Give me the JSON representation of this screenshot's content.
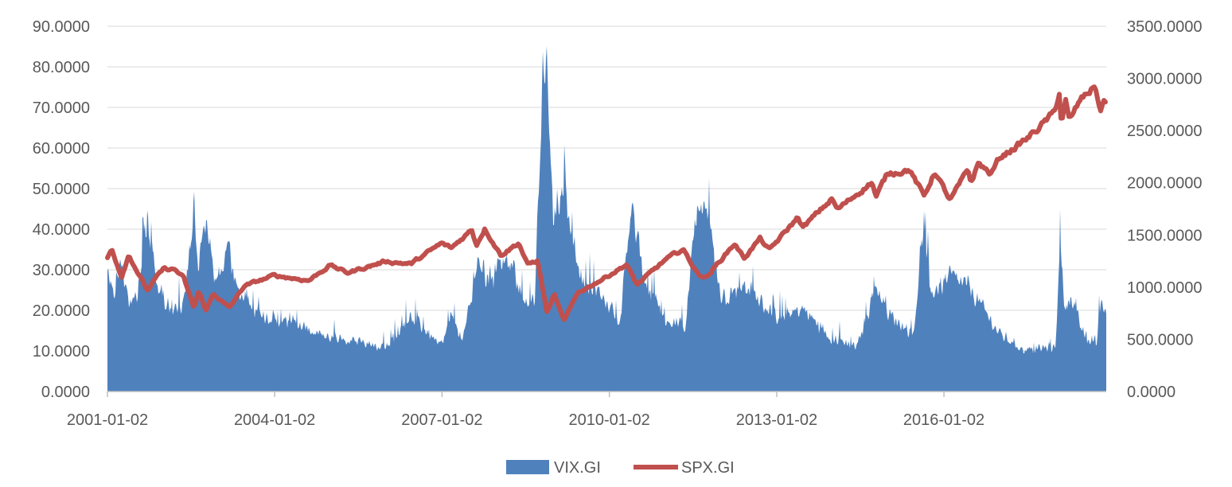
{
  "chart_data": {
    "type": "area",
    "title": "",
    "grid": true,
    "legend_position": "bottom",
    "x_axis": {
      "type": "date",
      "range": [
        "2001-01-02",
        "2018-11-30"
      ],
      "tick_labels": [
        "2001-01-02",
        "2004-01-02",
        "2007-01-02",
        "2010-01-02",
        "2013-01-02",
        "2016-01-02"
      ]
    },
    "y_left": {
      "range": [
        0,
        90
      ],
      "tick_labels": [
        "0.0000",
        "10.0000",
        "20.0000",
        "30.0000",
        "40.0000",
        "50.0000",
        "60.0000",
        "70.0000",
        "80.0000",
        "90.0000"
      ]
    },
    "y_right": {
      "range": [
        0,
        3500
      ],
      "tick_labels": [
        "0.0000",
        "500.0000",
        "1000.0000",
        "1500.0000",
        "2000.0000",
        "2500.0000",
        "3000.0000",
        "3500.0000"
      ]
    },
    "series": [
      {
        "name": "VIX.GI",
        "chart_type": "area",
        "axis": "left",
        "color": "#4f81bd",
        "points": [
          [
            "2001-01-02",
            29
          ],
          [
            "2001-02-15",
            22
          ],
          [
            "2001-04-04",
            32
          ],
          [
            "2001-05-20",
            21
          ],
          [
            "2001-07-15",
            23
          ],
          [
            "2001-09-20",
            43
          ],
          [
            "2001-11-15",
            27
          ],
          [
            "2002-01-15",
            22
          ],
          [
            "2002-03-15",
            19
          ],
          [
            "2002-05-15",
            21
          ],
          [
            "2002-07-24",
            45
          ],
          [
            "2002-08-20",
            32
          ],
          [
            "2002-10-09",
            42
          ],
          [
            "2002-11-30",
            28
          ],
          [
            "2003-01-15",
            30
          ],
          [
            "2003-03-11",
            34
          ],
          [
            "2003-05-15",
            24
          ],
          [
            "2003-08-01",
            21
          ],
          [
            "2003-10-15",
            19
          ],
          [
            "2004-01-02",
            18
          ],
          [
            "2004-06-15",
            16
          ],
          [
            "2004-12-30",
            13
          ],
          [
            "2005-06-15",
            12
          ],
          [
            "2005-12-30",
            11
          ],
          [
            "2006-06-15",
            18
          ],
          [
            "2006-12-30",
            11
          ],
          [
            "2007-02-27",
            19
          ],
          [
            "2007-05-15",
            13
          ],
          [
            "2007-08-16",
            30
          ],
          [
            "2007-11-26",
            28
          ],
          [
            "2008-01-22",
            31
          ],
          [
            "2008-03-17",
            32
          ],
          [
            "2008-06-15",
            22
          ],
          [
            "2008-09-01",
            23
          ],
          [
            "2008-10-24",
            80
          ],
          [
            "2008-11-20",
            80
          ],
          [
            "2008-12-31",
            40
          ],
          [
            "2009-03-09",
            52
          ],
          [
            "2009-06-15",
            28
          ],
          [
            "2009-12-31",
            21
          ],
          [
            "2010-03-15",
            17
          ],
          [
            "2010-05-20",
            45
          ],
          [
            "2010-08-31",
            26
          ],
          [
            "2010-12-31",
            17
          ],
          [
            "2011-05-15",
            16
          ],
          [
            "2011-08-08",
            48
          ],
          [
            "2011-10-03",
            45
          ],
          [
            "2011-12-31",
            23
          ],
          [
            "2012-06-01",
            26
          ],
          [
            "2012-12-31",
            18
          ],
          [
            "2013-06-24",
            20
          ],
          [
            "2013-12-31",
            13
          ],
          [
            "2014-06-15",
            11
          ],
          [
            "2014-10-15",
            26
          ],
          [
            "2014-12-31",
            19
          ],
          [
            "2015-06-15",
            14
          ],
          [
            "2015-08-24",
            40
          ],
          [
            "2015-09-30",
            24
          ],
          [
            "2016-01-20",
            27
          ],
          [
            "2016-02-11",
            28
          ],
          [
            "2016-06-24",
            25
          ],
          [
            "2016-12-31",
            14
          ],
          [
            "2017-06-15",
            10
          ],
          [
            "2017-12-31",
            11
          ],
          [
            "2018-02-05",
            37
          ],
          [
            "2018-02-28",
            20
          ],
          [
            "2018-04-02",
            23
          ],
          [
            "2018-07-15",
            13
          ],
          [
            "2018-09-30",
            12
          ],
          [
            "2018-10-24",
            24
          ],
          [
            "2018-11-30",
            18
          ]
        ]
      },
      {
        "name": "SPX.GI",
        "chart_type": "line",
        "axis": "right",
        "color": "#c0504d",
        "points": [
          [
            "2001-01-02",
            1283
          ],
          [
            "2001-01-31",
            1366
          ],
          [
            "2001-04-04",
            1103
          ],
          [
            "2001-05-21",
            1312
          ],
          [
            "2001-09-21",
            966
          ],
          [
            "2001-10-31",
            1059
          ],
          [
            "2002-01-04",
            1172
          ],
          [
            "2002-03-19",
            1170
          ],
          [
            "2002-05-15",
            1091
          ],
          [
            "2002-07-23",
            797
          ],
          [
            "2002-08-22",
            962
          ],
          [
            "2002-10-09",
            777
          ],
          [
            "2002-11-27",
            938
          ],
          [
            "2003-03-11",
            800
          ],
          [
            "2003-06-17",
            1011
          ],
          [
            "2003-12-31",
            1112
          ],
          [
            "2004-08-12",
            1064
          ],
          [
            "2004-12-31",
            1212
          ],
          [
            "2005-04-20",
            1137
          ],
          [
            "2005-12-30",
            1248
          ],
          [
            "2006-06-13",
            1223
          ],
          [
            "2006-12-29",
            1418
          ],
          [
            "2007-03-05",
            1374
          ],
          [
            "2007-07-16",
            1553
          ],
          [
            "2007-08-15",
            1406
          ],
          [
            "2007-10-09",
            1565
          ],
          [
            "2008-01-22",
            1310
          ],
          [
            "2008-05-19",
            1426
          ],
          [
            "2008-07-15",
            1214
          ],
          [
            "2008-09-19",
            1255
          ],
          [
            "2008-11-20",
            752
          ],
          [
            "2009-01-06",
            935
          ],
          [
            "2009-03-09",
            676
          ],
          [
            "2009-06-12",
            946
          ],
          [
            "2009-12-31",
            1115
          ],
          [
            "2010-04-23",
            1217
          ],
          [
            "2010-07-02",
            1022
          ],
          [
            "2010-12-31",
            1257
          ],
          [
            "2011-04-29",
            1363
          ],
          [
            "2011-08-08",
            1119
          ],
          [
            "2011-10-03",
            1099
          ],
          [
            "2011-12-30",
            1257
          ],
          [
            "2012-04-02",
            1419
          ],
          [
            "2012-06-01",
            1278
          ],
          [
            "2012-09-14",
            1465
          ],
          [
            "2012-11-15",
            1353
          ],
          [
            "2013-05-21",
            1669
          ],
          [
            "2013-06-24",
            1573
          ],
          [
            "2013-12-31",
            1848
          ],
          [
            "2014-02-03",
            1741
          ],
          [
            "2014-09-18",
            2011
          ],
          [
            "2014-10-15",
            1862
          ],
          [
            "2014-12-29",
            2090
          ],
          [
            "2015-05-21",
            2130
          ],
          [
            "2015-08-25",
            1867
          ],
          [
            "2015-11-03",
            2109
          ],
          [
            "2016-02-11",
            1829
          ],
          [
            "2016-06-08",
            2119
          ],
          [
            "2016-06-27",
            2000
          ],
          [
            "2016-08-15",
            2190
          ],
          [
            "2016-11-04",
            2085
          ],
          [
            "2016-12-31",
            2239
          ],
          [
            "2017-06-30",
            2423
          ],
          [
            "2017-12-29",
            2674
          ],
          [
            "2018-01-26",
            2873
          ],
          [
            "2018-02-08",
            2581
          ],
          [
            "2018-03-09",
            2786
          ],
          [
            "2018-04-02",
            2582
          ],
          [
            "2018-06-12",
            2786
          ],
          [
            "2018-08-31",
            2902
          ],
          [
            "2018-09-20",
            2931
          ],
          [
            "2018-10-29",
            2641
          ],
          [
            "2018-11-07",
            2813
          ],
          [
            "2018-11-30",
            2760
          ]
        ]
      }
    ]
  }
}
